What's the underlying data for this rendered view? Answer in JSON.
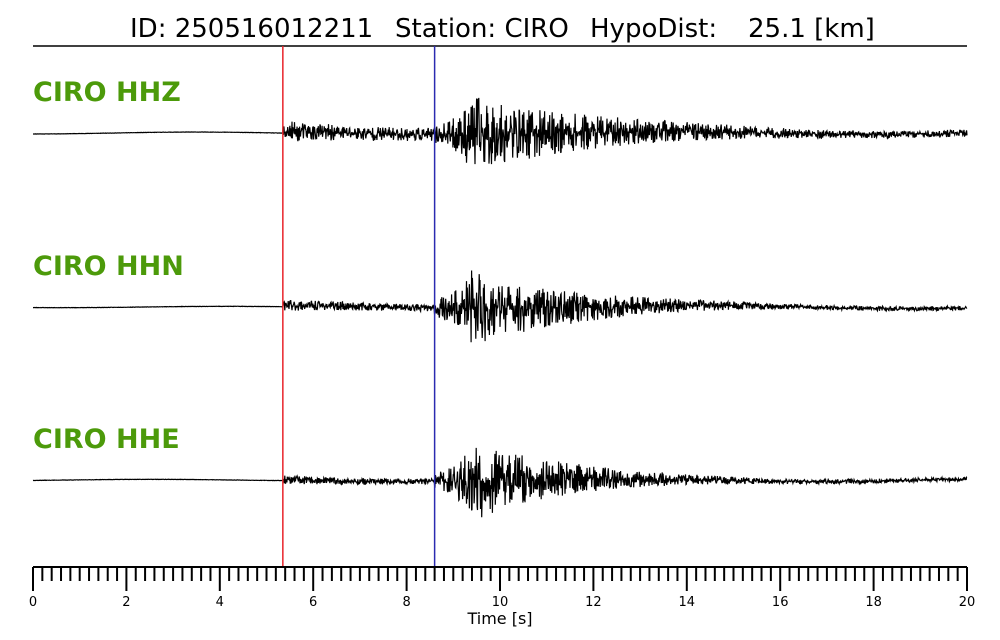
{
  "header": {
    "id_text": "ID: 250516012211",
    "station_text": "Station: CIRO",
    "hypodist_label": "HypoDist:",
    "hypodist_value": "25.1 [km]"
  },
  "colors": {
    "label": "#4c9a0a",
    "trace": "#000000",
    "p_pick": "#e8242b",
    "s_pick": "#2b2bb0",
    "axis": "#000000"
  },
  "chart_data": {
    "type": "line",
    "xlabel": "Time [s]",
    "xlim": [
      0,
      20
    ],
    "x_major_ticks": [
      0,
      2,
      4,
      6,
      8,
      10,
      12,
      14,
      16,
      18,
      20
    ],
    "x_tick_labels": [
      "0",
      "2",
      "4",
      "6",
      "8",
      "10",
      "12",
      "14",
      "16",
      "18",
      "20"
    ],
    "x_minor_tick_step": 0.2,
    "picks": [
      {
        "phase": "P",
        "time": 5.35,
        "color": "#e8242b"
      },
      {
        "phase": "S",
        "time": 8.6,
        "color": "#2b2bb0"
      }
    ],
    "series": [
      {
        "name": "CIRO HHZ",
        "peak_time": 9.45,
        "noise_before_p": 0.015,
        "coda_decay": 0.12,
        "p_onset_amplitude": 0.28,
        "s_max_amplitude": 1.0,
        "seed": 11
      },
      {
        "name": "CIRO HHN",
        "peak_time": 9.4,
        "noise_before_p": 0.01,
        "coda_decay": 0.16,
        "p_onset_amplitude": 0.14,
        "s_max_amplitude": 1.0,
        "seed": 23
      },
      {
        "name": "CIRO HHE",
        "peak_time": 9.5,
        "noise_before_p": 0.01,
        "coda_decay": 0.17,
        "p_onset_amplitude": 0.12,
        "s_max_amplitude": 1.0,
        "seed": 37
      }
    ]
  }
}
